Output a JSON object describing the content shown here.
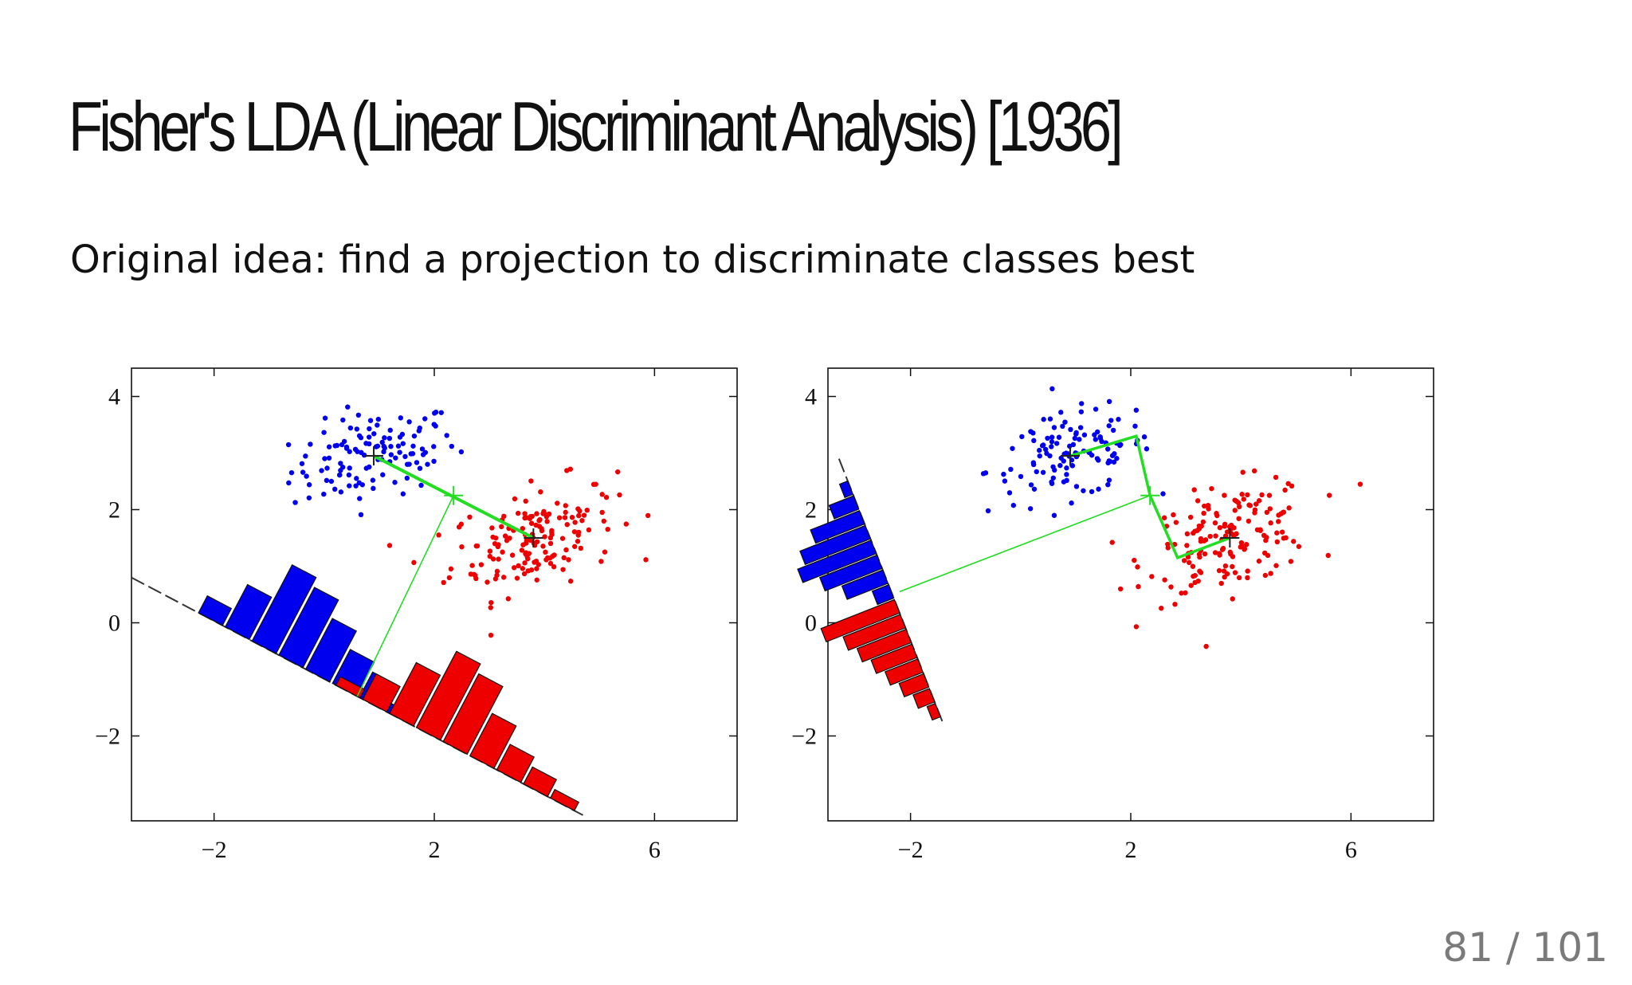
{
  "slide": {
    "title": "Fisher's LDA (Linear Discriminant Analysis) [1936]",
    "subtitle": "Original idea: find a projection to discriminate classes best",
    "page_number": "81 / 101"
  },
  "colors": {
    "class1": "#0000ee",
    "class2": "#ee0000",
    "projection_line": "#22dd22",
    "axis_line": "#111111"
  },
  "chart_data": [
    {
      "type": "scatter",
      "xlim": [
        -3.5,
        7.5
      ],
      "ylim": [
        -3.5,
        4.5
      ],
      "xticks": [
        "−2",
        "2",
        "6"
      ],
      "xtick_values": [
        -2,
        2,
        6
      ],
      "yticks": [
        "4",
        "2",
        "0",
        "−2"
      ],
      "ytick_values": [
        4,
        2,
        0,
        -2
      ],
      "grid": false,
      "series": [
        {
          "color": "#0000ee",
          "mean": [
            0.9,
            2.95
          ],
          "spread": [
            0.75,
            0.38
          ],
          "count": 120
        },
        {
          "color": "#ee0000",
          "mean": [
            3.8,
            1.5
          ],
          "spread": [
            0.75,
            0.45
          ],
          "count": 160
        }
      ],
      "class_means": [
        [
          0.9,
          2.95
        ],
        [
          3.8,
          1.5
        ]
      ],
      "overall_mean": [
        2.35,
        2.25
      ],
      "projection_direction": [
        0.894,
        -0.447
      ],
      "histogram": {
        "class1": [
          2,
          5,
          9,
          8,
          6,
          4,
          3,
          1
        ],
        "class2": [
          1,
          3,
          6,
          9,
          8,
          5,
          3,
          2,
          1
        ]
      }
    },
    {
      "type": "scatter",
      "xlim": [
        -3.5,
        7.5
      ],
      "ylim": [
        -3.5,
        4.5
      ],
      "xticks": [
        "−2",
        "2",
        "6"
      ],
      "xtick_values": [
        -2,
        2,
        6
      ],
      "yticks": [
        "4",
        "2",
        "0",
        "−2"
      ],
      "ytick_values": [
        4,
        2,
        0,
        -2
      ],
      "grid": false,
      "series": [
        {
          "color": "#0000ee",
          "mean": [
            0.9,
            2.95
          ],
          "spread": [
            0.75,
            0.38
          ],
          "count": 120
        },
        {
          "color": "#ee0000",
          "mean": [
            3.8,
            1.5
          ],
          "spread": [
            0.75,
            0.45
          ],
          "count": 160
        }
      ],
      "class_means": [
        [
          0.9,
          2.95
        ],
        [
          3.8,
          1.5
        ]
      ],
      "overall_mean": [
        2.35,
        2.25
      ],
      "projection_direction": [
        0.2,
        0.98
      ],
      "histogram": {
        "class1": [
          1,
          3,
          6,
          8,
          9,
          7,
          5,
          2
        ],
        "class2": [
          9,
          7,
          6,
          5,
          4,
          3,
          2,
          1
        ]
      }
    }
  ]
}
